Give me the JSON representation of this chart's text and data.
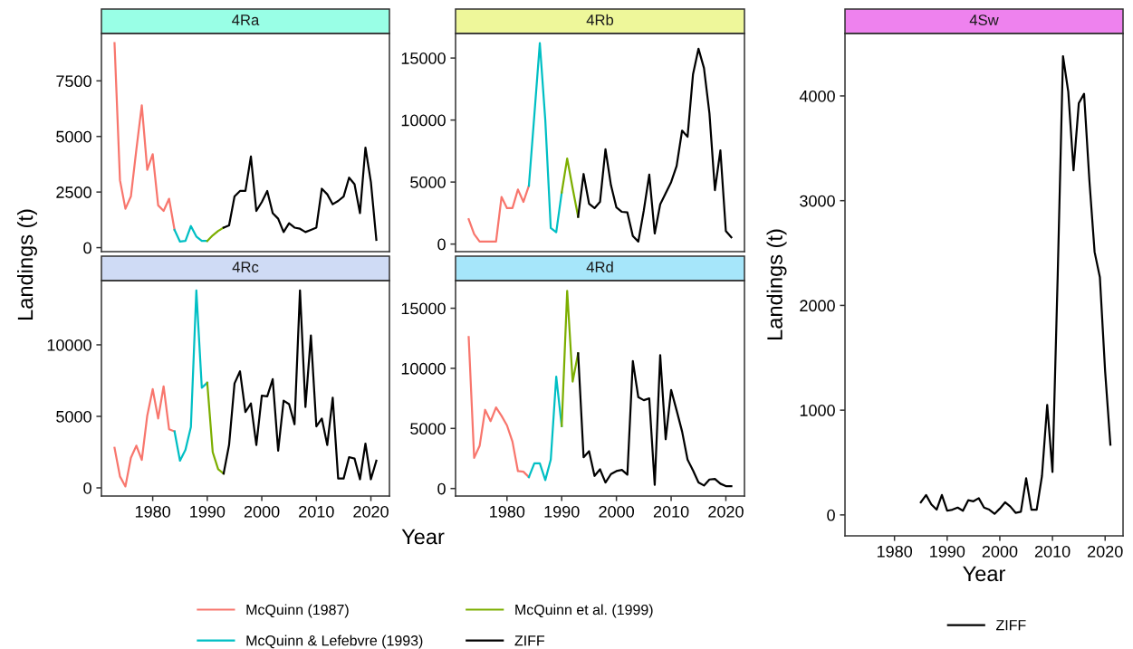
{
  "chart_data": [
    {
      "type": "line",
      "title": "4Ra",
      "ylabel": "Landings (t)",
      "xlim": [
        1970.6,
        2023.4
      ],
      "ylim": [
        -180,
        9630
      ],
      "yticks": [
        0,
        2500,
        5000,
        7500
      ],
      "tick_labels": "y",
      "grid": false,
      "legend": "bottom",
      "series": [
        {
          "name": "McQuinn (1987)",
          "color": "#f8766d",
          "x": [
            1973,
            1974,
            1975,
            1976,
            1977,
            1978,
            1979,
            1980,
            1981,
            1982,
            1983,
            1984
          ],
          "values": [
            9200,
            3030,
            1750,
            2300,
            4400,
            6400,
            3500,
            4200,
            1900,
            1650,
            2200,
            800
          ]
        },
        {
          "name": "McQuinn & Lefebvre (1993)",
          "color": "#00bfc4",
          "x": [
            1984,
            1985,
            1986,
            1987,
            1988,
            1989,
            1990
          ],
          "values": [
            800,
            270,
            300,
            970,
            500,
            300,
            300
          ]
        },
        {
          "name": "McQuinn et al. (1999)",
          "color": "#7cae00",
          "x": [
            1990,
            1991,
            1992,
            1993
          ],
          "values": [
            300,
            550,
            750,
            900
          ]
        },
        {
          "name": "ZIFF",
          "color": "#000000",
          "x": [
            1993,
            1994,
            1995,
            1996,
            1997,
            1998,
            1999,
            2000,
            2001,
            2002,
            2003,
            2004,
            2005,
            2006,
            2007,
            2008,
            2009,
            2010,
            2011,
            2012,
            2013,
            2014,
            2015,
            2016,
            2017,
            2018,
            2019,
            2020,
            2021
          ],
          "values": [
            900,
            1000,
            2300,
            2550,
            2550,
            4100,
            1650,
            2050,
            2550,
            1550,
            1300,
            700,
            1100,
            900,
            850,
            700,
            800,
            900,
            2650,
            2400,
            1950,
            2100,
            2300,
            3150,
            2850,
            1550,
            4500,
            2950,
            350
          ]
        }
      ]
    },
    {
      "type": "line",
      "title": "4Rb",
      "xlim": [
        1970.6,
        2023.4
      ],
      "ylim": [
        -610,
        16980
      ],
      "yticks": [
        0,
        5000,
        10000,
        15000
      ],
      "tick_labels": "y",
      "grid": false,
      "legend": "bottom",
      "series": [
        {
          "name": "McQuinn (1987)",
          "color": "#f8766d",
          "x": [
            1973,
            1974,
            1975,
            1976,
            1977,
            1978,
            1979,
            1980,
            1981,
            1982,
            1983,
            1984
          ],
          "values": [
            2000,
            800,
            200,
            200,
            200,
            200,
            3800,
            2900,
            2900,
            4400,
            3400,
            4700
          ]
        },
        {
          "name": "McQuinn & Lefebvre (1993)",
          "color": "#00bfc4",
          "x": [
            1984,
            1985,
            1986,
            1987,
            1988,
            1989,
            1990
          ],
          "values": [
            4700,
            10400,
            16200,
            10000,
            1300,
            950,
            4150
          ]
        },
        {
          "name": "McQuinn et al. (1999)",
          "color": "#7cae00",
          "x": [
            1990,
            1991,
            1992,
            1993
          ],
          "values": [
            4150,
            6900,
            4500,
            2200
          ]
        },
        {
          "name": "ZIFF",
          "color": "#000000",
          "x": [
            1993,
            1994,
            1995,
            1996,
            1997,
            1998,
            1999,
            2000,
            2001,
            2002,
            2003,
            2004,
            2005,
            2006,
            2007,
            2008,
            2009,
            2010,
            2011,
            2012,
            2013,
            2014,
            2015,
            2016,
            2017,
            2018,
            2019,
            2020,
            2021
          ],
          "values": [
            2200,
            5650,
            3250,
            2900,
            3400,
            7650,
            4750,
            2950,
            2600,
            2550,
            650,
            200,
            2700,
            5600,
            850,
            3200,
            4100,
            5000,
            6300,
            9150,
            8650,
            13700,
            15750,
            14200,
            10550,
            4350,
            7550,
            1050,
            550
          ]
        }
      ]
    },
    {
      "type": "line",
      "title": "4Rc",
      "xlabel": "Year",
      "xlim": [
        1970.6,
        2023.4
      ],
      "xticks": [
        1980,
        1990,
        2000,
        2010,
        2020
      ],
      "ylim": [
        -570,
        14490
      ],
      "yticks": [
        0,
        5000,
        10000
      ],
      "grid": false,
      "legend": "bottom",
      "series": [
        {
          "name": "McQuinn (1987)",
          "color": "#f8766d",
          "x": [
            1973,
            1974,
            1975,
            1976,
            1977,
            1978,
            1979,
            1980,
            1981,
            1982,
            1983,
            1984
          ],
          "values": [
            2800,
            800,
            100,
            2100,
            2950,
            1950,
            5050,
            6900,
            4850,
            7100,
            4100,
            3950
          ]
        },
        {
          "name": "McQuinn & Lefebvre (1993)",
          "color": "#00bfc4",
          "x": [
            1984,
            1985,
            1986,
            1987,
            1988,
            1989,
            1990
          ],
          "values": [
            3950,
            1900,
            2650,
            4250,
            13800,
            7000,
            7350
          ]
        },
        {
          "name": "McQuinn et al. (1999)",
          "color": "#7cae00",
          "x": [
            1990,
            1991,
            1992,
            1993
          ],
          "values": [
            7350,
            2500,
            1300,
            1000
          ]
        },
        {
          "name": "ZIFF",
          "color": "#000000",
          "x": [
            1993,
            1994,
            1995,
            1996,
            1997,
            1998,
            1999,
            2000,
            2001,
            2002,
            2003,
            2004,
            2005,
            2006,
            2007,
            2008,
            2009,
            2010,
            2011,
            2012,
            2013,
            2014,
            2015,
            2016,
            2017,
            2018,
            2019,
            2020,
            2021
          ],
          "values": [
            1000,
            3000,
            7300,
            8150,
            5300,
            5900,
            3000,
            6450,
            6400,
            7600,
            2600,
            6100,
            5850,
            4450,
            13800,
            5650,
            10650,
            4300,
            4850,
            3000,
            6300,
            650,
            650,
            2150,
            2050,
            600,
            3100,
            600,
            1900
          ]
        }
      ]
    },
    {
      "type": "line",
      "title": "4Rd",
      "xlim": [
        1970.6,
        2023.4
      ],
      "xticks": [
        1980,
        1990,
        2000,
        2010,
        2020
      ],
      "ylim": [
        -625,
        17300
      ],
      "yticks": [
        0,
        5000,
        10000,
        15000
      ],
      "grid": false,
      "legend": "bottom",
      "series": [
        {
          "name": "McQuinn (1987)",
          "color": "#f8766d",
          "x": [
            1973,
            1974,
            1975,
            1976,
            1977,
            1978,
            1979,
            1980,
            1981,
            1982,
            1983,
            1984
          ],
          "values": [
            12600,
            2550,
            3550,
            6550,
            5600,
            6750,
            6050,
            5250,
            3900,
            1450,
            1400,
            950
          ]
        },
        {
          "name": "McQuinn & Lefebvre (1993)",
          "color": "#00bfc4",
          "x": [
            1984,
            1985,
            1986,
            1987,
            1988,
            1989,
            1990
          ],
          "values": [
            950,
            2100,
            2100,
            700,
            2400,
            9300,
            5200
          ]
        },
        {
          "name": "McQuinn et al. (1999)",
          "color": "#7cae00",
          "x": [
            1990,
            1991,
            1992,
            1993
          ],
          "values": [
            5200,
            16450,
            8900,
            11250
          ]
        },
        {
          "name": "ZIFF",
          "color": "#000000",
          "x": [
            1993,
            1994,
            1995,
            1996,
            1997,
            1998,
            1999,
            2000,
            2001,
            2002,
            2003,
            2004,
            2005,
            2006,
            2007,
            2008,
            2009,
            2010,
            2011,
            2012,
            2013,
            2014,
            2015,
            2016,
            2017,
            2018,
            2019,
            2020,
            2021
          ],
          "values": [
            11250,
            2600,
            3100,
            1050,
            1600,
            500,
            1200,
            1450,
            1550,
            1150,
            10600,
            7600,
            7350,
            7500,
            300,
            11100,
            4100,
            8200,
            6500,
            4750,
            2400,
            1500,
            500,
            250,
            750,
            800,
            400,
            200,
            200
          ]
        }
      ]
    },
    {
      "type": "line",
      "title": "4Sw",
      "xlabel": "Year",
      "ylabel": "Landings (t)",
      "xlim": [
        1970.6,
        2023.4
      ],
      "xticks": [
        1980,
        1990,
        2000,
        2010,
        2020
      ],
      "ylim": [
        -200,
        4596
      ],
      "yticks": [
        0,
        1000,
        2000,
        3000,
        4000
      ],
      "grid": false,
      "legend": "bottom",
      "series": [
        {
          "name": "ZIFF",
          "color": "#000000",
          "x": [
            1985,
            1986,
            1987,
            1988,
            1989,
            1990,
            1991,
            1992,
            1993,
            1994,
            1995,
            1996,
            1997,
            1998,
            1999,
            2000,
            2001,
            2002,
            2003,
            2004,
            2005,
            2006,
            2007,
            2008,
            2009,
            2010,
            2011,
            2012,
            2013,
            2014,
            2015,
            2016,
            2017,
            2018,
            2019,
            2020,
            2021
          ],
          "values": [
            120,
            190,
            100,
            50,
            190,
            40,
            50,
            70,
            40,
            140,
            130,
            160,
            70,
            50,
            10,
            60,
            120,
            80,
            20,
            30,
            350,
            50,
            50,
            370,
            1050,
            410,
            2300,
            4380,
            4040,
            3290,
            3930,
            4020,
            3200,
            2510,
            2270,
            1370,
            670
          ]
        }
      ]
    }
  ]
}
